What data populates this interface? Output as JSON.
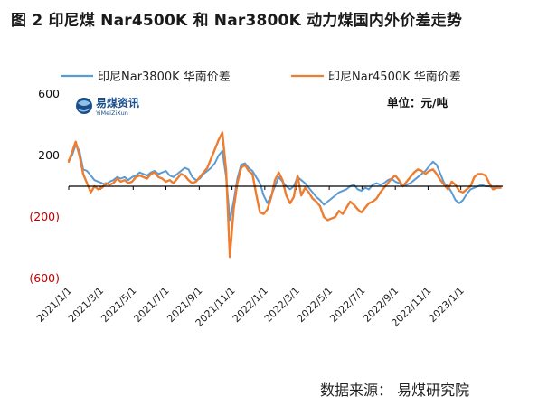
{
  "title": "图 2    印尼煤 Nar4500K 和 Nar3800K 动力煤国内外价差走势",
  "source": "数据来源：  易煤研究院",
  "logo": {
    "cn": "易煤资讯",
    "en": "YiMeiZiXun"
  },
  "colors": {
    "blue": "#5b9bd5",
    "orange": "#ed7d31",
    "negative_tick": "#c00000",
    "axis": "#000000"
  },
  "chart_data": {
    "type": "line",
    "unit": "单位：元/吨",
    "ylim": [
      -600,
      600
    ],
    "yticks": [
      600,
      200,
      -200,
      -600
    ],
    "ytick_labels": [
      "600",
      "200",
      "(200)",
      "(600)"
    ],
    "xlim": [
      "2021-01-01",
      "2023-03-20"
    ],
    "xticks": [
      "2021-01-01",
      "2021-03-01",
      "2021-05-01",
      "2021-07-01",
      "2021-09-01",
      "2021-11-01",
      "2022-01-01",
      "2022-03-01",
      "2022-05-01",
      "2022-07-01",
      "2022-09-01",
      "2022-11-01",
      "2023-01-01"
    ],
    "xtick_labels": [
      "2021/1/1",
      "2021/3/1",
      "2021/5/1",
      "2021/7/1",
      "2021/9/1",
      "2021/11/1",
      "2022/1/1",
      "2022/3/1",
      "2022/5/1",
      "2022/7/1",
      "2022/9/1",
      "2022/11/1",
      "2023/1/1"
    ],
    "legend_position": "top",
    "series": [
      {
        "name": "印尼Nar3800K 华南价差",
        "color": "#5b9bd5",
        "points": [
          [
            "2021-01-01",
            170
          ],
          [
            "2021-01-07",
            200
          ],
          [
            "2021-01-14",
            270
          ],
          [
            "2021-01-21",
            230
          ],
          [
            "2021-01-28",
            110
          ],
          [
            "2021-02-04",
            100
          ],
          [
            "2021-02-11",
            70
          ],
          [
            "2021-02-18",
            40
          ],
          [
            "2021-02-25",
            30
          ],
          [
            "2021-03-04",
            20
          ],
          [
            "2021-03-11",
            10
          ],
          [
            "2021-03-18",
            30
          ],
          [
            "2021-03-25",
            40
          ],
          [
            "2021-04-01",
            60
          ],
          [
            "2021-04-08",
            50
          ],
          [
            "2021-04-15",
            60
          ],
          [
            "2021-04-22",
            40
          ],
          [
            "2021-04-29",
            60
          ],
          [
            "2021-05-06",
            70
          ],
          [
            "2021-05-13",
            90
          ],
          [
            "2021-05-20",
            80
          ],
          [
            "2021-05-27",
            70
          ],
          [
            "2021-06-03",
            90
          ],
          [
            "2021-06-10",
            100
          ],
          [
            "2021-06-17",
            80
          ],
          [
            "2021-06-24",
            90
          ],
          [
            "2021-07-01",
            100
          ],
          [
            "2021-07-08",
            70
          ],
          [
            "2021-07-15",
            60
          ],
          [
            "2021-07-22",
            80
          ],
          [
            "2021-07-29",
            100
          ],
          [
            "2021-08-05",
            120
          ],
          [
            "2021-08-12",
            110
          ],
          [
            "2021-08-19",
            60
          ],
          [
            "2021-08-26",
            40
          ],
          [
            "2021-09-02",
            50
          ],
          [
            "2021-09-09",
            80
          ],
          [
            "2021-09-16",
            100
          ],
          [
            "2021-09-23",
            120
          ],
          [
            "2021-09-30",
            150
          ],
          [
            "2021-10-07",
            200
          ],
          [
            "2021-10-14",
            230
          ],
          [
            "2021-10-21",
            60
          ],
          [
            "2021-10-28",
            -220
          ],
          [
            "2021-11-04",
            -100
          ],
          [
            "2021-11-11",
            50
          ],
          [
            "2021-11-18",
            140
          ],
          [
            "2021-11-25",
            150
          ],
          [
            "2021-12-02",
            120
          ],
          [
            "2021-12-09",
            100
          ],
          [
            "2021-12-16",
            60
          ],
          [
            "2021-12-23",
            20
          ],
          [
            "2021-12-30",
            -60
          ],
          [
            "2022-01-06",
            -110
          ],
          [
            "2022-01-13",
            -60
          ],
          [
            "2022-01-20",
            0
          ],
          [
            "2022-01-27",
            60
          ],
          [
            "2022-02-03",
            30
          ],
          [
            "2022-02-10",
            0
          ],
          [
            "2022-02-17",
            -20
          ],
          [
            "2022-02-24",
            0
          ],
          [
            "2022-03-03",
            60
          ],
          [
            "2022-03-10",
            40
          ],
          [
            "2022-03-17",
            20
          ],
          [
            "2022-03-24",
            -10
          ],
          [
            "2022-03-31",
            -40
          ],
          [
            "2022-04-07",
            -70
          ],
          [
            "2022-04-14",
            -90
          ],
          [
            "2022-04-21",
            -120
          ],
          [
            "2022-04-28",
            -100
          ],
          [
            "2022-05-05",
            -80
          ],
          [
            "2022-05-12",
            -60
          ],
          [
            "2022-05-19",
            -40
          ],
          [
            "2022-05-26",
            -30
          ],
          [
            "2022-06-02",
            -20
          ],
          [
            "2022-06-09",
            0
          ],
          [
            "2022-06-16",
            10
          ],
          [
            "2022-06-23",
            -20
          ],
          [
            "2022-06-30",
            -30
          ],
          [
            "2022-07-07",
            -10
          ],
          [
            "2022-07-14",
            -20
          ],
          [
            "2022-07-21",
            10
          ],
          [
            "2022-07-28",
            20
          ],
          [
            "2022-08-04",
            10
          ],
          [
            "2022-08-11",
            20
          ],
          [
            "2022-08-18",
            40
          ],
          [
            "2022-08-25",
            50
          ],
          [
            "2022-09-01",
            30
          ],
          [
            "2022-09-08",
            20
          ],
          [
            "2022-09-15",
            0
          ],
          [
            "2022-09-22",
            10
          ],
          [
            "2022-09-29",
            20
          ],
          [
            "2022-10-06",
            40
          ],
          [
            "2022-10-13",
            60
          ],
          [
            "2022-10-20",
            80
          ],
          [
            "2022-10-27",
            100
          ],
          [
            "2022-11-03",
            130
          ],
          [
            "2022-11-10",
            160
          ],
          [
            "2022-11-17",
            140
          ],
          [
            "2022-11-24",
            80
          ],
          [
            "2022-12-01",
            20
          ],
          [
            "2022-12-08",
            0
          ],
          [
            "2022-12-15",
            -40
          ],
          [
            "2022-12-22",
            -90
          ],
          [
            "2022-12-29",
            -110
          ],
          [
            "2023-01-05",
            -90
          ],
          [
            "2023-01-12",
            -50
          ],
          [
            "2023-01-19",
            -20
          ],
          [
            "2023-01-26",
            -10
          ],
          [
            "2023-02-02",
            0
          ],
          [
            "2023-02-09",
            10
          ],
          [
            "2023-02-16",
            0
          ],
          [
            "2023-02-23",
            0
          ],
          [
            "2023-03-02",
            -10
          ],
          [
            "2023-03-09",
            0
          ],
          [
            "2023-03-16",
            -10
          ]
        ]
      },
      {
        "name": "印尼Nar4500K 华南价差",
        "color": "#ed7d31",
        "points": [
          [
            "2021-01-01",
            160
          ],
          [
            "2021-01-07",
            220
          ],
          [
            "2021-01-14",
            290
          ],
          [
            "2021-01-21",
            200
          ],
          [
            "2021-01-28",
            80
          ],
          [
            "2021-02-04",
            20
          ],
          [
            "2021-02-11",
            -40
          ],
          [
            "2021-02-18",
            0
          ],
          [
            "2021-02-25",
            -20
          ],
          [
            "2021-03-04",
            -10
          ],
          [
            "2021-03-11",
            20
          ],
          [
            "2021-03-18",
            10
          ],
          [
            "2021-03-25",
            20
          ],
          [
            "2021-04-01",
            50
          ],
          [
            "2021-04-08",
            30
          ],
          [
            "2021-04-15",
            40
          ],
          [
            "2021-04-22",
            20
          ],
          [
            "2021-04-29",
            30
          ],
          [
            "2021-05-06",
            60
          ],
          [
            "2021-05-13",
            70
          ],
          [
            "2021-05-20",
            60
          ],
          [
            "2021-05-27",
            50
          ],
          [
            "2021-06-03",
            80
          ],
          [
            "2021-06-10",
            90
          ],
          [
            "2021-06-17",
            60
          ],
          [
            "2021-06-24",
            50
          ],
          [
            "2021-07-01",
            30
          ],
          [
            "2021-07-08",
            40
          ],
          [
            "2021-07-15",
            20
          ],
          [
            "2021-07-22",
            50
          ],
          [
            "2021-07-29",
            80
          ],
          [
            "2021-08-05",
            70
          ],
          [
            "2021-08-12",
            40
          ],
          [
            "2021-08-19",
            20
          ],
          [
            "2021-08-26",
            30
          ],
          [
            "2021-09-02",
            60
          ],
          [
            "2021-09-09",
            90
          ],
          [
            "2021-09-16",
            120
          ],
          [
            "2021-09-23",
            180
          ],
          [
            "2021-09-30",
            240
          ],
          [
            "2021-10-07",
            300
          ],
          [
            "2021-10-14",
            350
          ],
          [
            "2021-10-21",
            100
          ],
          [
            "2021-10-28",
            -460
          ],
          [
            "2021-11-04",
            -150
          ],
          [
            "2021-11-11",
            20
          ],
          [
            "2021-11-18",
            120
          ],
          [
            "2021-11-25",
            140
          ],
          [
            "2021-12-02",
            100
          ],
          [
            "2021-12-09",
            80
          ],
          [
            "2021-12-16",
            -50
          ],
          [
            "2021-12-23",
            -170
          ],
          [
            "2021-12-30",
            -180
          ],
          [
            "2022-01-06",
            -150
          ],
          [
            "2022-01-13",
            -70
          ],
          [
            "2022-01-20",
            40
          ],
          [
            "2022-01-27",
            90
          ],
          [
            "2022-02-03",
            40
          ],
          [
            "2022-02-10",
            -60
          ],
          [
            "2022-02-17",
            -110
          ],
          [
            "2022-02-24",
            -70
          ],
          [
            "2022-03-03",
            70
          ],
          [
            "2022-03-10",
            -60
          ],
          [
            "2022-03-17",
            -10
          ],
          [
            "2022-03-24",
            -40
          ],
          [
            "2022-03-31",
            -80
          ],
          [
            "2022-04-07",
            -100
          ],
          [
            "2022-04-14",
            -130
          ],
          [
            "2022-04-21",
            -200
          ],
          [
            "2022-04-28",
            -220
          ],
          [
            "2022-05-05",
            -210
          ],
          [
            "2022-05-12",
            -200
          ],
          [
            "2022-05-19",
            -160
          ],
          [
            "2022-05-26",
            -180
          ],
          [
            "2022-06-02",
            -140
          ],
          [
            "2022-06-09",
            -100
          ],
          [
            "2022-06-16",
            -120
          ],
          [
            "2022-06-23",
            -150
          ],
          [
            "2022-06-30",
            -170
          ],
          [
            "2022-07-07",
            -140
          ],
          [
            "2022-07-14",
            -110
          ],
          [
            "2022-07-21",
            -100
          ],
          [
            "2022-07-28",
            -80
          ],
          [
            "2022-08-04",
            -40
          ],
          [
            "2022-08-11",
            -10
          ],
          [
            "2022-08-18",
            20
          ],
          [
            "2022-08-25",
            50
          ],
          [
            "2022-09-01",
            70
          ],
          [
            "2022-09-08",
            40
          ],
          [
            "2022-09-15",
            0
          ],
          [
            "2022-09-22",
            30
          ],
          [
            "2022-09-29",
            60
          ],
          [
            "2022-10-06",
            90
          ],
          [
            "2022-10-13",
            110
          ],
          [
            "2022-10-20",
            100
          ],
          [
            "2022-10-27",
            80
          ],
          [
            "2022-11-03",
            100
          ],
          [
            "2022-11-10",
            110
          ],
          [
            "2022-11-17",
            80
          ],
          [
            "2022-11-24",
            40
          ],
          [
            "2022-12-01",
            10
          ],
          [
            "2022-12-08",
            -20
          ],
          [
            "2022-12-15",
            30
          ],
          [
            "2022-12-22",
            10
          ],
          [
            "2022-12-29",
            -30
          ],
          [
            "2023-01-05",
            -40
          ],
          [
            "2023-01-12",
            -20
          ],
          [
            "2023-01-19",
            0
          ],
          [
            "2023-01-26",
            60
          ],
          [
            "2023-02-02",
            80
          ],
          [
            "2023-02-09",
            80
          ],
          [
            "2023-02-16",
            70
          ],
          [
            "2023-02-23",
            20
          ],
          [
            "2023-03-02",
            -20
          ],
          [
            "2023-03-09",
            -10
          ],
          [
            "2023-03-16",
            -10
          ]
        ]
      }
    ]
  }
}
